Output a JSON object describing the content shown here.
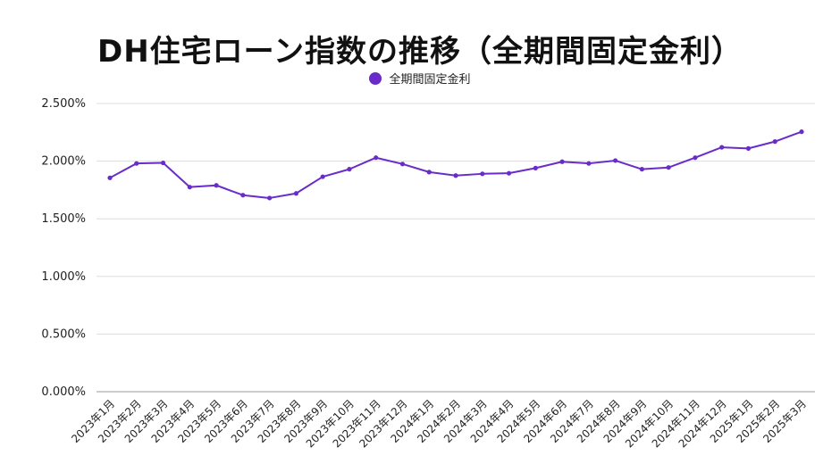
{
  "chart_data": {
    "type": "line",
    "title": "DH住宅ローン指数の推移（全期間固定金利）",
    "xlabel": "",
    "ylabel": "",
    "ylim": [
      0,
      2.5
    ],
    "yticks": [
      "0.000%",
      "0.500%",
      "1.000%",
      "1.500%",
      "2.000%",
      "2.500%"
    ],
    "grid": true,
    "legend_position": "top",
    "categories": [
      "2023年1月",
      "2023年2月",
      "2023年3月",
      "2023年4月",
      "2023年5月",
      "2023年6月",
      "2023年7月",
      "2023年8月",
      "2023年9月",
      "2023年10月",
      "2023年11月",
      "2023年12月",
      "2024年1月",
      "2024年2月",
      "2024年3月",
      "2024年4月",
      "2024年5月",
      "2024年6月",
      "2024年7月",
      "2024年8月",
      "2024年9月",
      "2024年10月",
      "2024年11月",
      "2024年12月",
      "2025年1月",
      "2025年2月",
      "2025年3月"
    ],
    "series": [
      {
        "name": "全期間固定金利",
        "color": "#6a2cc8",
        "values": [
          1.855,
          1.98,
          1.985,
          1.775,
          1.79,
          1.705,
          1.68,
          1.72,
          1.865,
          1.93,
          2.03,
          1.975,
          1.905,
          1.875,
          1.89,
          1.895,
          1.94,
          1.995,
          1.98,
          2.005,
          1.93,
          1.945,
          2.03,
          2.12,
          2.11,
          2.17,
          2.255
        ]
      }
    ]
  },
  "colors": {
    "line": "#6a2cc8",
    "grid": "#dddddd",
    "axis": "#222222"
  }
}
